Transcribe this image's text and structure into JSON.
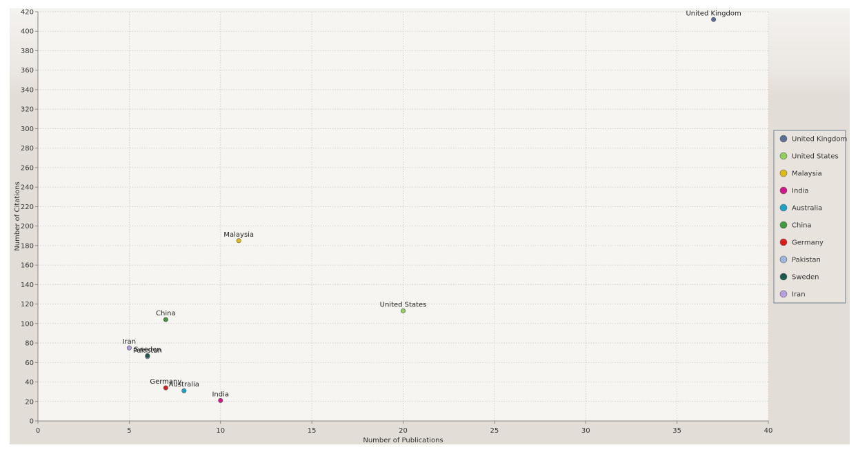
{
  "chart_data": {
    "type": "scatter",
    "xlabel": "Number of Publications",
    "ylabel": "Number of Citations",
    "xlim": [
      0,
      40
    ],
    "ylim": [
      0,
      420
    ],
    "x_ticks": [
      0,
      5,
      10,
      15,
      20,
      25,
      30,
      35,
      40
    ],
    "y_ticks": [
      0,
      20,
      40,
      60,
      80,
      100,
      120,
      140,
      160,
      180,
      200,
      220,
      240,
      260,
      280,
      300,
      320,
      340,
      360,
      380,
      400,
      420
    ],
    "grid": true,
    "legend_position": "right",
    "series": [
      {
        "name": "United Kingdom",
        "color": "#5a7095",
        "x": 37,
        "y": 412
      },
      {
        "name": "United States",
        "color": "#8fcf5c",
        "x": 20,
        "y": 113
      },
      {
        "name": "Malaysia",
        "color": "#e0bb10",
        "x": 11,
        "y": 185
      },
      {
        "name": "India",
        "color": "#d4148c",
        "x": 10,
        "y": 21
      },
      {
        "name": "Australia",
        "color": "#1aa3c8",
        "x": 8,
        "y": 31
      },
      {
        "name": "China",
        "color": "#3f9a3a",
        "x": 7,
        "y": 104
      },
      {
        "name": "Germany",
        "color": "#dd1c1c",
        "x": 7,
        "y": 34
      },
      {
        "name": "Pakistan",
        "color": "#9db4e0",
        "x": 6,
        "y": 66
      },
      {
        "name": "Sweden",
        "color": "#1a5a4a",
        "x": 6,
        "y": 67
      },
      {
        "name": "Iran",
        "color": "#b79ee0",
        "x": 5,
        "y": 75
      }
    ]
  }
}
